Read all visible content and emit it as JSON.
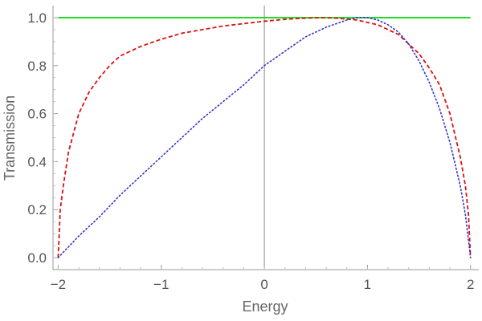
{
  "chart_data": {
    "type": "line",
    "title": "",
    "xlabel": "Energy",
    "ylabel": "Transmission",
    "xlim": [
      -2.05,
      2.08
    ],
    "ylim": [
      -0.05,
      1.05
    ],
    "x_ticks": [
      -2,
      -1,
      0,
      1,
      2
    ],
    "x_tick_labels": [
      "−2",
      "−1",
      "0",
      "1",
      "2"
    ],
    "y_ticks": [
      0.0,
      0.2,
      0.4,
      0.6,
      0.8,
      1.0
    ],
    "y_tick_labels": [
      "0.0",
      "0.2",
      "0.4",
      "0.6",
      "0.8",
      "1.0"
    ],
    "grid": false,
    "legend": "none",
    "series": [
      {
        "style": "solid",
        "color": "#22dd22",
        "x": [
          -2,
          2
        ],
        "y": [
          1.0,
          1.0
        ]
      },
      {
        "style": "dashed",
        "color": "#dd1111",
        "x": [
          -2.0,
          -1.98,
          -1.95,
          -1.9,
          -1.8,
          -1.7,
          -1.6,
          -1.5,
          -1.4,
          -1.2,
          -1.0,
          -0.8,
          -0.6,
          -0.4,
          -0.2,
          0.0,
          0.2,
          0.4,
          0.55,
          0.7,
          0.9,
          1.1,
          1.3,
          1.5,
          1.6,
          1.7,
          1.8,
          1.9,
          1.95,
          1.98,
          2.0
        ],
        "y": [
          0.0,
          0.2,
          0.3,
          0.44,
          0.6,
          0.69,
          0.75,
          0.8,
          0.84,
          0.88,
          0.91,
          0.935,
          0.95,
          0.965,
          0.975,
          0.985,
          0.993,
          0.998,
          1.0,
          0.998,
          0.99,
          0.97,
          0.93,
          0.85,
          0.79,
          0.72,
          0.6,
          0.42,
          0.3,
          0.18,
          0.0
        ]
      },
      {
        "style": "dotted",
        "color": "#3333cc",
        "x": [
          -2.0,
          -1.8,
          -1.6,
          -1.4,
          -1.2,
          -1.0,
          -0.8,
          -0.6,
          -0.4,
          -0.2,
          0.0,
          0.2,
          0.4,
          0.6,
          0.8,
          0.9,
          1.0,
          1.1,
          1.2,
          1.3,
          1.4,
          1.5,
          1.6,
          1.7,
          1.8,
          1.9,
          1.95,
          2.0
        ],
        "y": [
          0.0,
          0.09,
          0.17,
          0.26,
          0.34,
          0.42,
          0.5,
          0.58,
          0.65,
          0.72,
          0.8,
          0.86,
          0.92,
          0.96,
          0.99,
          1.0,
          1.0,
          0.99,
          0.97,
          0.94,
          0.89,
          0.82,
          0.73,
          0.62,
          0.48,
          0.3,
          0.18,
          0.0
        ]
      }
    ]
  }
}
